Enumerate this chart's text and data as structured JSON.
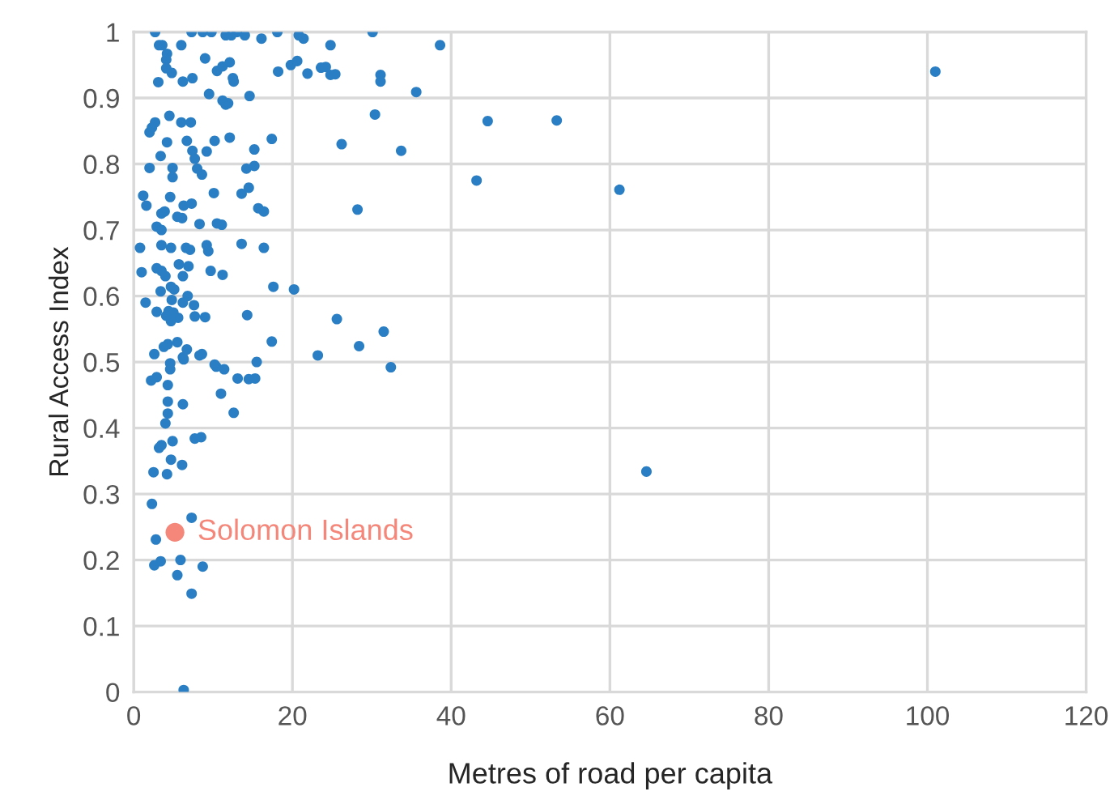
{
  "chart_data": {
    "type": "scatter",
    "xlabel": "Metres of road per capita",
    "ylabel": "Rural Access Index",
    "xlim": [
      0,
      120
    ],
    "xticks": [
      0,
      20,
      40,
      60,
      80,
      100,
      120
    ],
    "ylim": [
      0,
      1
    ],
    "yticks": [
      0,
      0.1,
      0.2,
      0.3,
      0.4,
      0.5,
      0.6,
      0.7,
      0.8,
      0.9,
      1
    ],
    "grid": true,
    "legend": false,
    "marker": "circle",
    "series": [
      {
        "color": "#2a7fc4",
        "x": [
          2.7,
          7.3,
          8.7,
          9.8,
          11.6,
          12.3,
          13,
          14,
          16.1,
          18.1,
          20.8,
          21.4,
          24.8,
          3.2,
          3.6,
          6.0,
          9.0,
          4.2,
          4.1,
          4.8,
          4.1,
          3.1,
          6.2,
          7.4,
          10.5,
          11.2,
          12.1,
          12.5,
          12.6,
          18.2,
          19.8,
          20.6,
          21.9,
          24.2,
          25.4,
          9.5,
          11.2,
          11.6,
          11.9,
          14.6,
          2.7,
          2.3,
          2.0,
          4.5,
          6.0,
          7.2,
          4.2,
          6.7,
          10.2,
          12.1,
          17.4,
          15.2,
          9.2,
          7.4,
          7.7,
          3.4,
          2.0,
          4.9,
          8.0,
          8.6,
          4.9,
          14.2,
          15.2,
          14.5,
          13.6,
          1.2,
          1.6,
          4.6,
          3.9,
          3.5,
          6.3,
          7.3,
          5.5,
          6.1,
          10.1,
          15.7,
          16.4,
          2.9,
          3.5,
          8.3,
          10.5,
          11.1,
          0.8,
          3.5,
          4.7,
          6.6,
          7.1,
          9.2,
          9.4,
          13.6,
          16.4,
          1.0,
          2.9,
          3.5,
          4.0,
          5.7,
          6.9,
          6.2,
          9.7,
          11.2,
          4.7,
          5.1,
          17.6,
          20.2,
          1.5,
          3.4,
          4.8,
          6.8,
          6.2,
          7.6,
          4.4,
          2.9,
          5.0,
          5.6,
          7.7,
          9.0,
          14.3,
          4.1,
          4.7,
          2.6,
          3.8,
          4.3,
          6.2,
          6.7,
          8.6,
          10.2,
          15.5,
          17.4,
          5.5,
          4.6,
          4.6,
          6.3,
          8.3,
          10.4,
          11.4,
          13.1,
          14.5,
          15.3,
          2.2,
          2.9,
          4.3,
          11.0,
          6.2,
          4.3,
          4.3,
          12.6,
          4.0,
          3.2,
          3.5,
          4.9,
          7.7,
          8.5,
          4.7,
          6.1,
          2.5,
          4.2,
          2.3,
          7.3,
          2.8,
          2.6,
          3.4,
          5.9,
          8.7,
          5.5,
          7.3,
          6.3,
          30.1,
          38.6,
          23.6,
          24.8,
          31.1,
          31.1,
          35.6,
          30.4,
          44.6,
          53.3,
          26.2,
          33.7,
          43.2,
          61.2,
          28.2,
          25.6,
          31.5,
          28.4,
          23.2,
          32.4,
          64.6,
          101
        ],
        "values": [
          1.0,
          1.0,
          1.0,
          1.0,
          0.995,
          0.995,
          1.0,
          0.995,
          0.99,
          1.0,
          0.995,
          0.99,
          0.98,
          0.98,
          0.98,
          0.98,
          0.96,
          0.967,
          0.958,
          0.938,
          0.945,
          0.924,
          0.925,
          0.93,
          0.941,
          0.948,
          0.954,
          0.93,
          0.925,
          0.94,
          0.95,
          0.956,
          0.937,
          0.947,
          0.936,
          0.906,
          0.896,
          0.89,
          0.892,
          0.903,
          0.863,
          0.855,
          0.848,
          0.873,
          0.863,
          0.863,
          0.833,
          0.835,
          0.835,
          0.84,
          0.838,
          0.822,
          0.819,
          0.82,
          0.808,
          0.812,
          0.794,
          0.794,
          0.793,
          0.784,
          0.78,
          0.793,
          0.797,
          0.764,
          0.755,
          0.752,
          0.737,
          0.75,
          0.728,
          0.725,
          0.737,
          0.74,
          0.72,
          0.718,
          0.756,
          0.733,
          0.728,
          0.705,
          0.7,
          0.709,
          0.71,
          0.708,
          0.673,
          0.677,
          0.673,
          0.673,
          0.67,
          0.677,
          0.668,
          0.679,
          0.673,
          0.636,
          0.642,
          0.638,
          0.63,
          0.648,
          0.645,
          0.63,
          0.638,
          0.632,
          0.614,
          0.61,
          0.614,
          0.61,
          0.59,
          0.607,
          0.594,
          0.6,
          0.59,
          0.586,
          0.577,
          0.576,
          0.575,
          0.567,
          0.569,
          0.568,
          0.571,
          0.57,
          0.562,
          0.512,
          0.523,
          0.527,
          0.507,
          0.519,
          0.512,
          0.496,
          0.5,
          0.531,
          0.53,
          0.489,
          0.498,
          0.504,
          0.51,
          0.493,
          0.489,
          0.475,
          0.474,
          0.475,
          0.472,
          0.477,
          0.465,
          0.452,
          0.436,
          0.44,
          0.422,
          0.423,
          0.407,
          0.37,
          0.374,
          0.38,
          0.384,
          0.386,
          0.352,
          0.344,
          0.333,
          0.33,
          0.285,
          0.264,
          0.231,
          0.192,
          0.198,
          0.2,
          0.19,
          0.177,
          0.149,
          0.003,
          1.0,
          0.98,
          0.946,
          0.935,
          0.935,
          0.925,
          0.909,
          0.875,
          0.865,
          0.866,
          0.83,
          0.82,
          0.775,
          0.761,
          0.731,
          0.565,
          0.546,
          0.524,
          0.51,
          0.492,
          0.334,
          0.94
        ]
      },
      {
        "name": "Solomon Islands",
        "color": "#f4877a",
        "x": [
          5.2
        ],
        "values": [
          0.242
        ]
      }
    ]
  }
}
